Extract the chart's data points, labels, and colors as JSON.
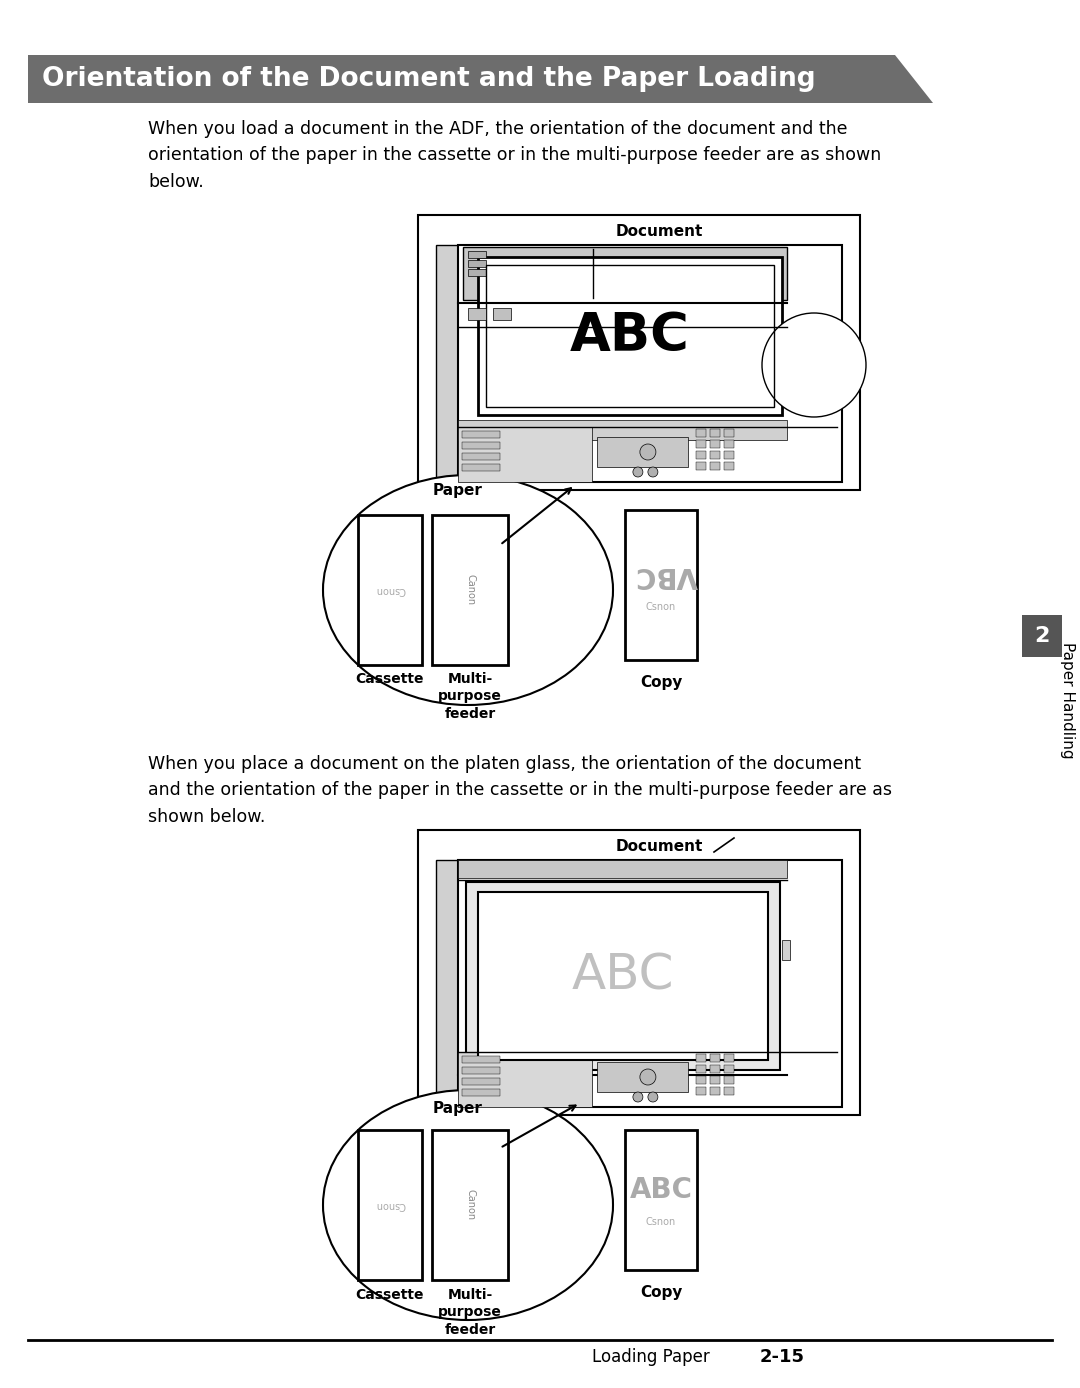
{
  "title": "Orientation of the Document and the Paper Loading",
  "title_bg_color": "#6d6d6d",
  "title_text_color": "#ffffff",
  "page_bg_color": "#ffffff",
  "body_text_1": "When you load a document in the ADF, the orientation of the document and the\norientation of the paper in the cassette or in the multi-purpose feeder are as shown\nbelow.",
  "body_text_2": "When you place a document on the platen glass, the orientation of the document\nand the orientation of the paper in the cassette or in the multi-purpose feeder are as\nshown below.",
  "footer_left": "Loading Paper",
  "footer_right": "2-15",
  "side_tab": "Paper Handling",
  "side_tab_number": "2"
}
